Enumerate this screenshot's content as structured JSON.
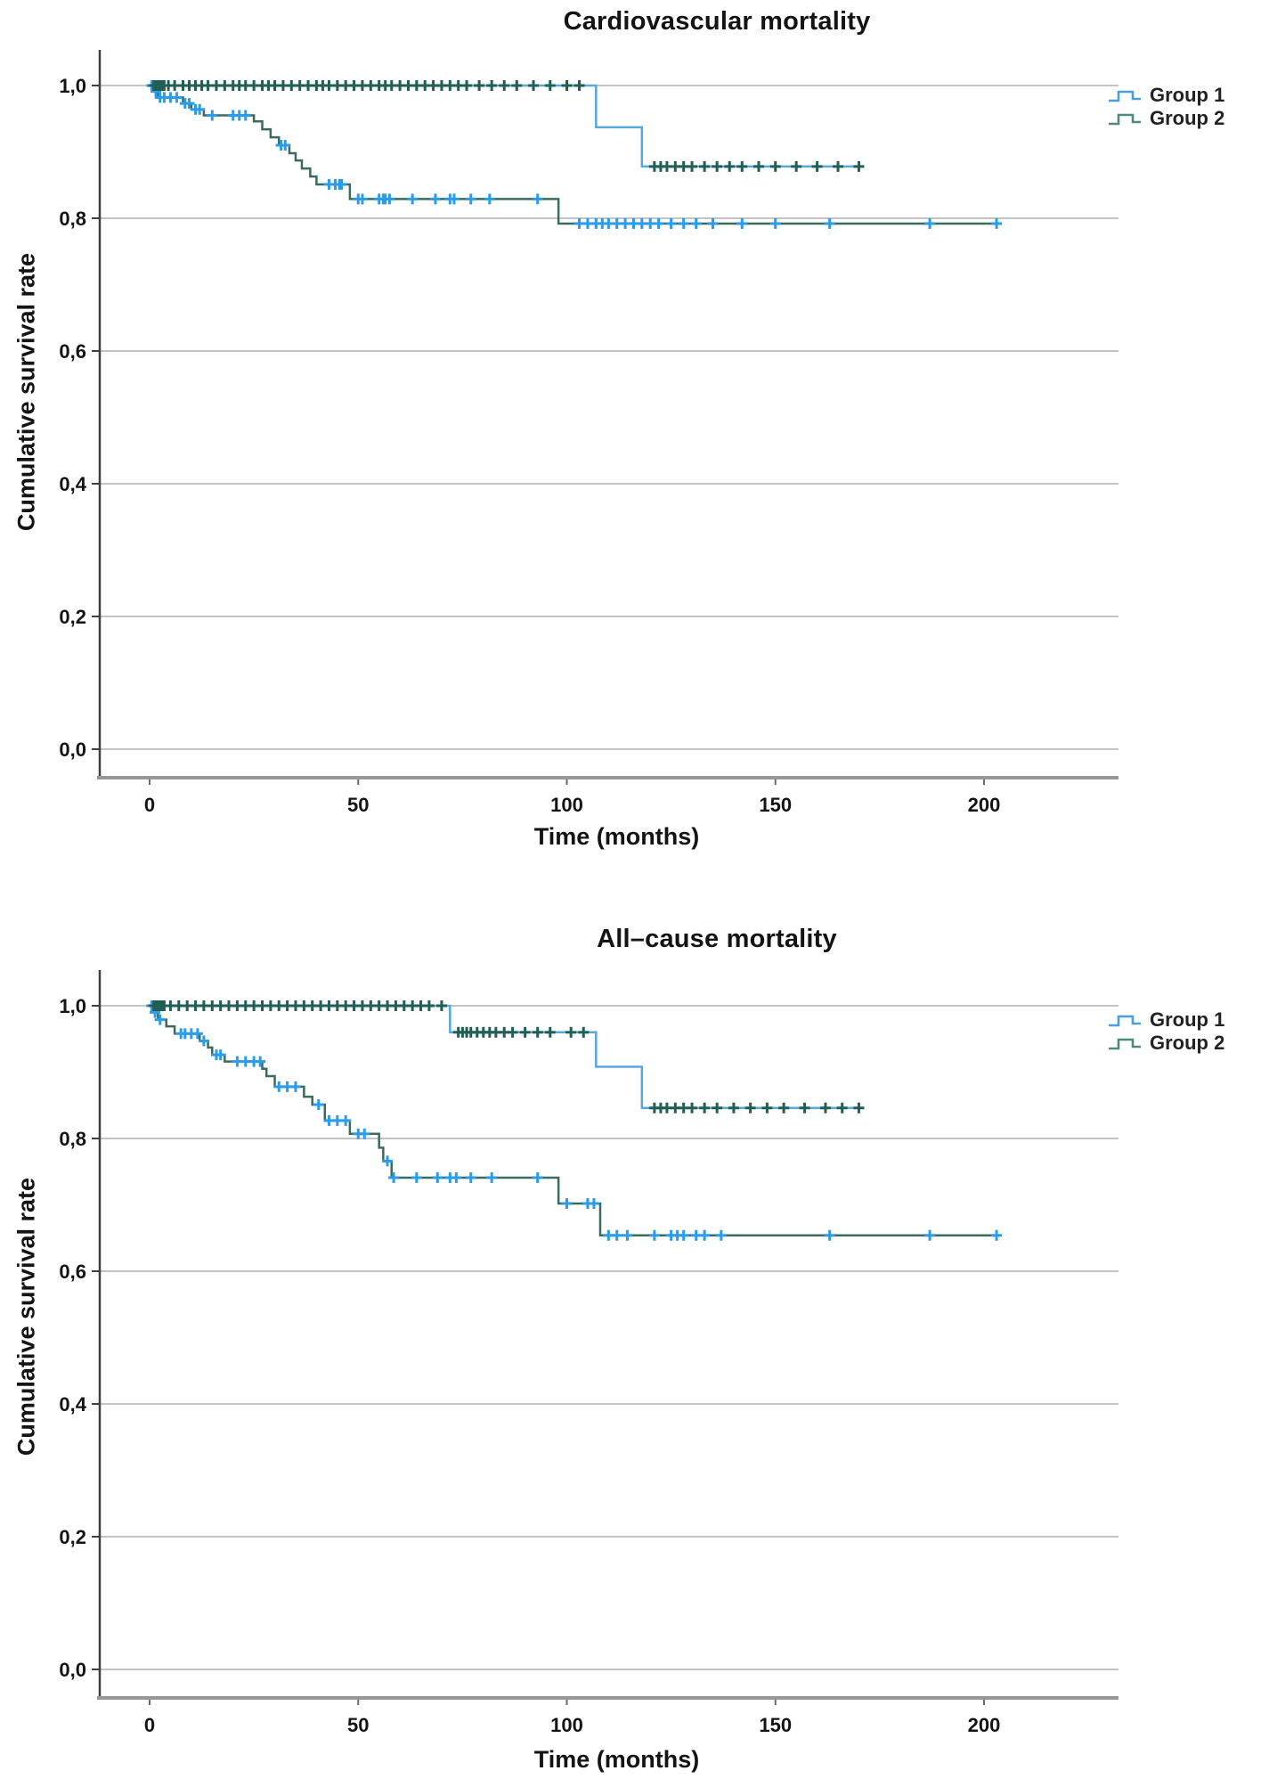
{
  "figure": {
    "background_color": "#ffffff",
    "grid_color": "#c4c4c4",
    "axis_color": "#3f3f3f",
    "baseline_color": "#979797"
  },
  "chart_data": [
    {
      "type": "line",
      "subtype": "kaplan-meier-step",
      "title": "Cardiovascular mortality",
      "xlabel": "Time (months)",
      "ylabel": "Cumulative survival rate",
      "x_axis": {
        "tick_values": [
          0,
          50,
          100,
          150,
          200
        ],
        "tick_labels": [
          "0",
          "50",
          "100",
          "150",
          "200"
        ],
        "range": [
          0,
          232
        ]
      },
      "y_axis": {
        "tick_values": [
          1.0,
          0.8,
          0.6,
          0.4,
          0.2,
          0.0
        ],
        "tick_labels": [
          "1,0",
          "0,8",
          "0,6",
          "0,4",
          "0,2",
          "0,0"
        ],
        "range": [
          0,
          1.04
        ]
      },
      "legend_position": "top-right",
      "grid": true,
      "series": [
        {
          "name": "Group 1",
          "legend_color": "#4aa0dd",
          "line_color": "#3c6b5e",
          "censor_color": "#2d9ce8",
          "steps": [
            [
              0,
              1.0
            ],
            [
              1,
              0.991
            ],
            [
              2,
              0.982
            ],
            [
              8,
              0.973
            ],
            [
              10,
              0.964
            ],
            [
              13,
              0.955
            ],
            [
              25,
              0.946
            ],
            [
              27,
              0.934
            ],
            [
              29,
              0.922
            ],
            [
              31,
              0.91
            ],
            [
              33.5,
              0.898
            ],
            [
              35,
              0.887
            ],
            [
              36.5,
              0.875
            ],
            [
              38.5,
              0.863
            ],
            [
              40,
              0.851
            ],
            [
              48,
              0.829
            ],
            [
              98,
              0.792
            ]
          ],
          "end_time": 203,
          "censor_times": [
            0.5,
            1.5,
            2.5,
            3.5,
            5,
            6.5,
            8.5,
            9.5,
            11,
            12,
            15,
            20,
            21.5,
            23,
            31.5,
            32.5,
            43,
            44.5,
            45.5,
            46,
            50,
            51,
            55,
            56,
            56.5,
            57.5,
            63,
            68.5,
            72,
            73,
            77,
            81.5,
            93,
            103,
            105,
            107,
            108.5,
            110,
            112,
            114,
            116,
            118,
            120,
            122,
            125,
            128,
            131,
            135,
            142,
            150,
            163,
            187,
            203
          ]
        },
        {
          "name": "Group 2",
          "legend_color": "#4e8a7e",
          "line_color": "#58a7dd",
          "censor_color": "#215e56",
          "steps": [
            [
              0,
              1.0
            ],
            [
              107,
              0.937
            ],
            [
              118,
              0.878
            ]
          ],
          "end_time": 170,
          "censor_times": [
            1,
            1.5,
            2,
            2.5,
            3,
            3.5,
            4.5,
            6,
            8,
            9.5,
            11,
            12.5,
            14,
            16,
            18,
            20,
            21.5,
            23,
            25,
            27,
            28.5,
            30,
            32,
            34,
            36,
            38,
            40,
            41.5,
            43,
            45,
            47,
            49,
            51,
            53,
            55,
            56.5,
            58,
            60,
            62,
            64,
            66,
            68,
            70,
            72,
            74,
            76,
            79,
            82,
            85,
            88,
            92,
            96,
            100,
            103,
            121,
            122.5,
            124,
            126,
            128,
            130,
            133,
            136,
            139,
            142,
            146,
            150,
            155,
            160,
            165,
            170
          ]
        }
      ]
    },
    {
      "type": "line",
      "subtype": "kaplan-meier-step",
      "title": "All–cause mortality",
      "xlabel": "Time (months)",
      "ylabel": "Cumulative survival rate",
      "x_axis": {
        "tick_values": [
          0,
          50,
          100,
          150,
          200
        ],
        "tick_labels": [
          "0",
          "50",
          "100",
          "150",
          "200"
        ],
        "range": [
          0,
          232
        ]
      },
      "y_axis": {
        "tick_values": [
          1.0,
          0.8,
          0.6,
          0.4,
          0.2,
          0.0
        ],
        "tick_labels": [
          "1,0",
          "0,8",
          "0,6",
          "0,4",
          "0,2",
          "0,0"
        ],
        "range": [
          0,
          1.04
        ]
      },
      "legend_position": "top-right",
      "grid": true,
      "series": [
        {
          "name": "Group 1",
          "legend_color": "#4aa0dd",
          "line_color": "#3c6b5e",
          "censor_color": "#2d9ce8",
          "steps": [
            [
              0,
              1.0
            ],
            [
              1,
              0.99
            ],
            [
              2,
              0.979
            ],
            [
              4,
              0.969
            ],
            [
              6,
              0.958
            ],
            [
              12,
              0.947
            ],
            [
              14,
              0.937
            ],
            [
              15,
              0.926
            ],
            [
              18,
              0.916
            ],
            [
              27,
              0.905
            ],
            [
              28,
              0.894
            ],
            [
              30,
              0.878
            ],
            [
              37,
              0.863
            ],
            [
              39,
              0.851
            ],
            [
              42,
              0.827
            ],
            [
              48,
              0.807
            ],
            [
              55,
              0.786
            ],
            [
              56,
              0.766
            ],
            [
              58,
              0.741
            ],
            [
              98,
              0.702
            ],
            [
              108,
              0.654
            ]
          ],
          "end_time": 203,
          "censor_times": [
            0.5,
            1.3,
            2.5,
            7.5,
            8.5,
            10,
            11.5,
            13,
            16,
            17,
            21,
            23,
            25,
            26.5,
            31,
            33,
            35,
            40.5,
            43,
            45,
            47,
            50,
            51.5,
            57,
            58.5,
            64,
            69,
            72,
            73.5,
            77,
            82,
            93,
            100,
            105,
            106.5,
            110,
            112,
            114.5,
            121,
            125,
            126.5,
            128,
            131,
            133,
            137,
            163,
            187,
            203
          ]
        },
        {
          "name": "Group 2",
          "legend_color": "#4e8a7e",
          "line_color": "#58a7dd",
          "censor_color": "#215e56",
          "steps": [
            [
              0,
              1.0
            ],
            [
              72,
              0.96
            ],
            [
              107,
              0.908
            ],
            [
              118,
              0.846
            ]
          ],
          "end_time": 170,
          "censor_times": [
            1,
            1.5,
            2,
            2.5,
            3,
            3.5,
            5,
            7,
            9,
            11,
            13,
            15,
            17,
            19,
            21,
            23,
            25,
            27,
            29,
            31,
            33,
            35,
            37,
            39,
            41,
            43,
            45,
            47,
            49,
            51,
            53,
            55,
            57,
            59,
            61,
            63,
            65,
            67,
            70,
            74,
            75,
            76,
            77,
            78.5,
            80,
            81.5,
            83,
            85,
            87,
            90,
            93,
            96,
            101,
            104,
            121,
            122.5,
            124,
            126,
            128,
            130,
            133,
            136,
            140,
            144,
            148,
            152,
            157,
            162,
            166,
            170
          ]
        }
      ]
    }
  ]
}
